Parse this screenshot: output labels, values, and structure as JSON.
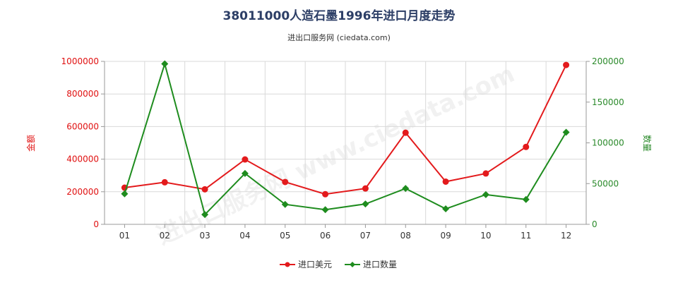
{
  "chart_data": {
    "type": "line",
    "title": "38011000人造石墨1996年进口月度走势",
    "subtitle": "进出口服务网 (ciedata.com)",
    "watermark": "进出口服务网 www.ciedata.com",
    "categories": [
      "01",
      "02",
      "03",
      "04",
      "05",
      "06",
      "07",
      "08",
      "09",
      "10",
      "11",
      "12"
    ],
    "y_left": {
      "label": "金额",
      "min": 0,
      "max": 1000000,
      "ticks": [
        "0",
        "200000",
        "400000",
        "600000",
        "800000",
        "1000000"
      ],
      "color": "#e01010"
    },
    "y_right": {
      "label": "数量",
      "min": 0,
      "max": 200000,
      "ticks": [
        "0",
        "50000",
        "100000",
        "150000",
        "200000"
      ],
      "color": "#2a8a2a"
    },
    "series": [
      {
        "name": "进口美元",
        "axis": "left",
        "color": "#e31a1c",
        "marker": "circle",
        "values": [
          225000,
          258000,
          215000,
          398000,
          260000,
          185000,
          220000,
          562000,
          262000,
          312000,
          475000,
          978000
        ]
      },
      {
        "name": "进口数量",
        "axis": "right",
        "color": "#1e8c1e",
        "marker": "diamond",
        "values": [
          37500,
          197000,
          12000,
          62500,
          24500,
          18000,
          25000,
          44000,
          19000,
          36500,
          30500,
          113000
        ]
      }
    ],
    "grid": true,
    "legend_position": "bottom-center"
  }
}
